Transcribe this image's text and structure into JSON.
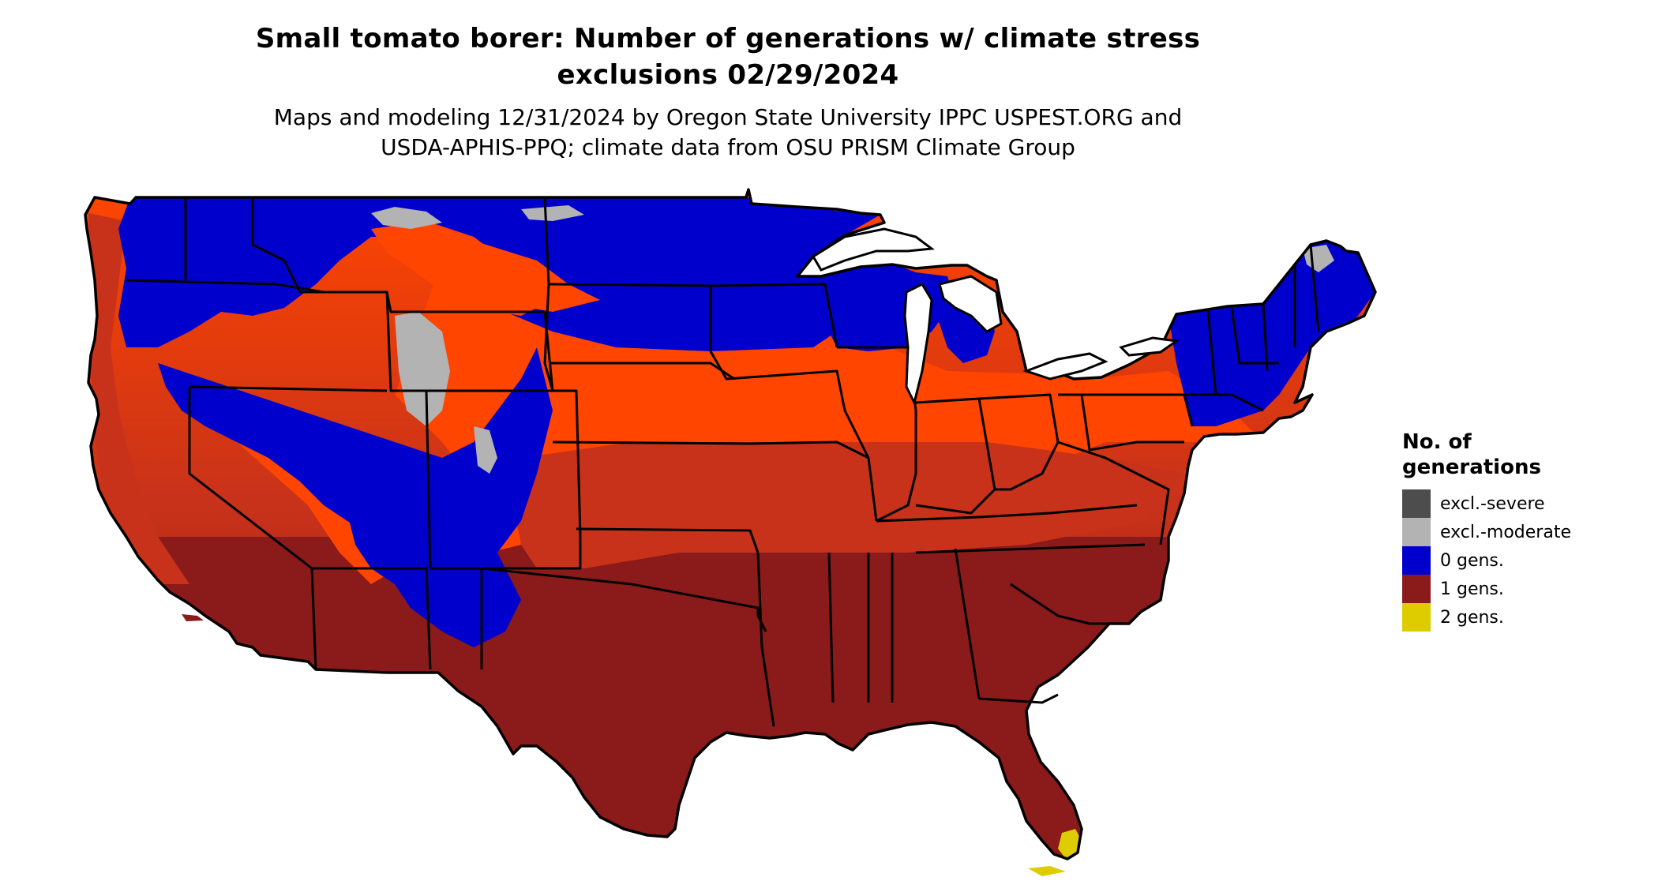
{
  "title": {
    "line1": "Small tomato borer: Number of generations w/ climate stress",
    "line2": "exclusions 02/29/2024"
  },
  "subtitle": {
    "line1": "Maps and modeling 12/31/2024 by Oregon State University IPPC USPEST.ORG and",
    "line2": "USDA-APHIS-PPQ; climate data from OSU PRISM Climate Group"
  },
  "legend": {
    "title_line1": "No. of",
    "title_line2": "generations",
    "items": [
      {
        "label": "excl.-severe",
        "color": "#4d4d4d"
      },
      {
        "label": "excl.-moderate",
        "color": "#b3b3b3"
      },
      {
        "label": "0 gens.",
        "color": "#0000cd"
      },
      {
        "label": "1 gens.",
        "color": "#8b1a1a"
      },
      {
        "label": "2 gens.",
        "color": "#ddcc00"
      }
    ]
  },
  "map": {
    "colors": {
      "zero_gens": "#0000cd",
      "one_gen_light": "#ff4500",
      "one_gen_mid": "#c8321a",
      "one_gen_dark": "#8b1a1a",
      "two_gens": "#ddcc00",
      "excl_moderate": "#b3b3b3",
      "boundary": "#000000"
    }
  }
}
